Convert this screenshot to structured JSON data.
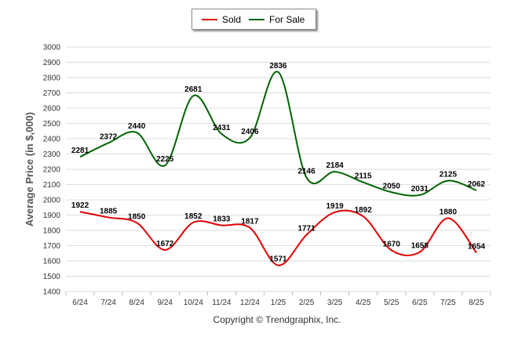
{
  "chart_data": {
    "type": "line",
    "title": "",
    "xlabel": "",
    "ylabel": "Average Price (in $,000)",
    "ylim": [
      1400,
      3000
    ],
    "y_ticks": [
      1400,
      1500,
      1600,
      1700,
      1800,
      1900,
      2000,
      2100,
      2200,
      2300,
      2400,
      2500,
      2600,
      2700,
      2800,
      2900,
      3000
    ],
    "grid": true,
    "legend_position": "top-center",
    "categories": [
      "6/24",
      "7/24",
      "8/24",
      "9/24",
      "10/24",
      "11/24",
      "12/24",
      "1/25",
      "2/25",
      "3/25",
      "4/25",
      "5/25",
      "6/25",
      "7/25",
      "8/25"
    ],
    "series": [
      {
        "name": "Sold",
        "color": "#e00000",
        "values": [
          1922,
          1885,
          1850,
          1672,
          1852,
          1833,
          1817,
          1571,
          1771,
          1919,
          1892,
          1670,
          1658,
          1880,
          1654
        ]
      },
      {
        "name": "For Sale",
        "color": "#006400",
        "values": [
          2281,
          2372,
          2440,
          2225,
          2681,
          2431,
          2406,
          2836,
          2146,
          2184,
          2115,
          2050,
          2031,
          2125,
          2062
        ]
      }
    ]
  },
  "footer": {
    "copyright": "Copyright © Trendgraphix, Inc."
  }
}
